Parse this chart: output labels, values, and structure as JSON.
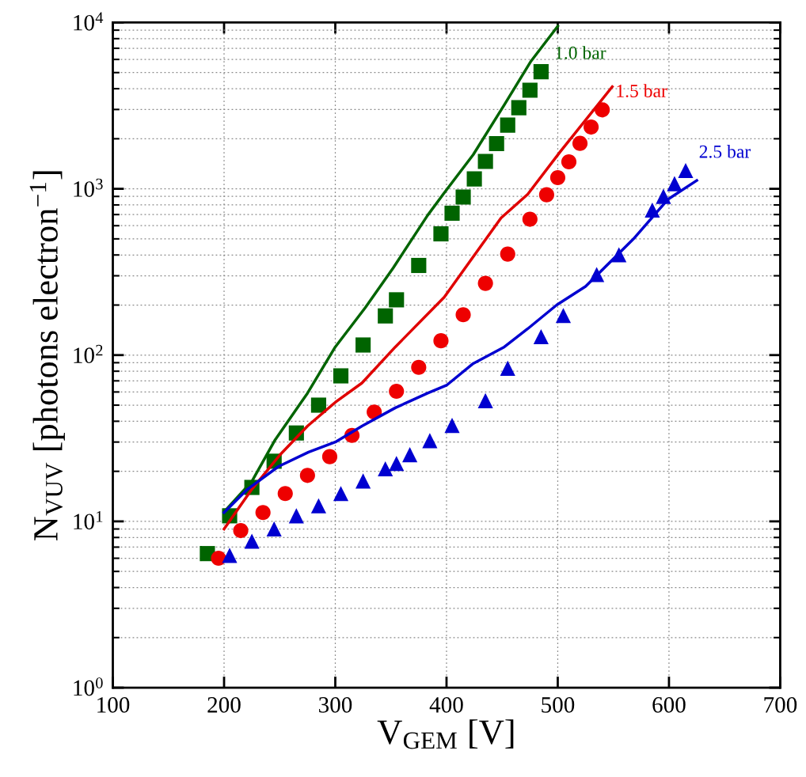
{
  "chart_data": {
    "type": "scatter",
    "xlabel": "V$_{GEM}$ [V]",
    "ylabel": "N$_{VUV}$ [photons electron$^{−1}$]",
    "log": "y",
    "grid": true,
    "xlim": [
      100,
      700
    ],
    "xticks": [
      100,
      200,
      300,
      400,
      500,
      600,
      700
    ],
    "ylim": [
      1,
      10000
    ],
    "yticks": [
      {
        "value": 1,
        "label": "10$^{0}$"
      },
      {
        "value": 10,
        "label": "10$^{1}$"
      },
      {
        "value": 100,
        "label": "10$^{2}$"
      },
      {
        "value": 1000,
        "label": "10$^{3}$"
      },
      {
        "value": 10000,
        "label": "10$^{4}$"
      }
    ],
    "series": [
      {
        "type": "line",
        "color": "#006400",
        "line_style": "solid",
        "x": [
          200,
          225,
          246,
          275,
          300,
          327,
          352,
          383,
          397,
          424,
          452,
          476,
          500
        ],
        "values": [
          11.4,
          17.4,
          31,
          59,
          112,
          193,
          334,
          693,
          927,
          1604,
          3206,
          5863,
          9500
        ]
      },
      {
        "type": "line",
        "color": "#e00000",
        "line_style": "solid",
        "x": [
          200,
          225,
          250,
          275,
          300,
          324,
          354,
          398,
          449,
          473,
          502,
          549
        ],
        "values": [
          9.0,
          15.6,
          25,
          37.4,
          52,
          68,
          112,
          223,
          668,
          927,
          1664,
          4112
        ]
      },
      {
        "type": "line",
        "color": "#0000d0",
        "line_style": "solid",
        "x": [
          200,
          221,
          249,
          276,
          300,
          324,
          354,
          383,
          400,
          424,
          452,
          473,
          499,
          525,
          568,
          599,
          625
        ],
        "values": [
          11.3,
          15.6,
          21.4,
          26.1,
          30,
          37.4,
          48.2,
          59,
          65.8,
          89,
          112,
          144,
          200,
          259,
          499,
          863,
          1122
        ]
      },
      {
        "name": "1.0 bar",
        "color": "#006400",
        "marker": "square",
        "x": [
          185,
          205,
          225,
          245,
          265,
          285,
          305,
          325,
          345,
          355,
          375,
          395,
          405,
          415,
          425,
          435,
          445,
          455,
          465,
          475,
          485
        ],
        "values": [
          6.4,
          10.8,
          16,
          23,
          34,
          50,
          75,
          115,
          172,
          215,
          346,
          536,
          713,
          893,
          1146,
          1462,
          1871,
          2417,
          3073,
          3920,
          5060
        ]
      },
      {
        "name": "1.5 bar",
        "color": "#ee0000",
        "marker": "circle",
        "x": [
          195,
          215,
          235,
          255,
          275,
          295,
          315,
          335,
          355,
          375,
          395,
          415,
          435,
          455,
          475,
          490,
          500,
          510,
          520,
          530,
          540
        ],
        "values": [
          6.0,
          8.8,
          11.3,
          14.7,
          18.9,
          24.5,
          32.9,
          45.4,
          60.6,
          84.4,
          122,
          175,
          270,
          405,
          656,
          921,
          1167,
          1453,
          1877,
          2352,
          2985
        ]
      },
      {
        "name": "2.5 bar",
        "color": "#0000d0",
        "marker": "triangle",
        "x": [
          205,
          225,
          245,
          265,
          285,
          305,
          325,
          345,
          355,
          367,
          385,
          405,
          435,
          455,
          485,
          505,
          535,
          555,
          585,
          595,
          605,
          615
        ],
        "values": [
          6.25,
          7.6,
          9.0,
          10.8,
          12.4,
          14.7,
          17.5,
          20.7,
          22.3,
          25.2,
          30.6,
          37.8,
          53.2,
          83.4,
          129,
          173,
          305,
          401,
          745,
          901,
          1074,
          1288
        ]
      }
    ]
  }
}
